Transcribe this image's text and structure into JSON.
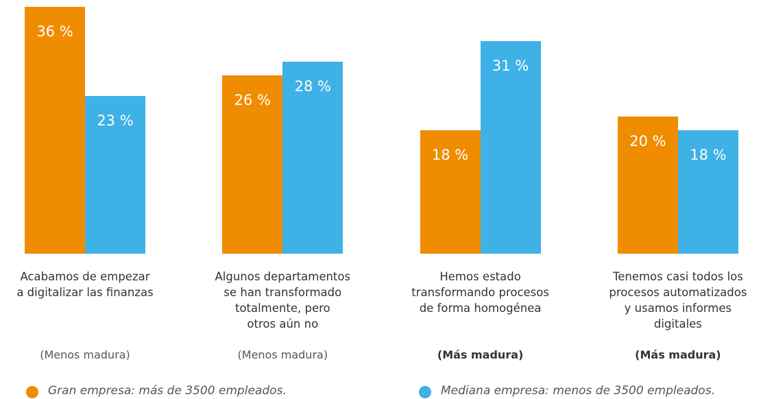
{
  "chart_data": {
    "type": "bar",
    "categories": [
      "Acabamos de empezar\na digitalizar las finanzas",
      "Algunos departamentos\nse han transformado\ntotalmente, pero\notros aún no",
      "Hemos estado\ntransformando procesos\nde forma homogénea",
      "Tenemos casi todos los\nprocesos automatizados\ny usamos informes\ndigitales"
    ],
    "maturity": [
      "(Menos madura)",
      "(Menos madura)",
      "(Más madura)",
      "(Más madura)"
    ],
    "maturity_bold": [
      false,
      false,
      true,
      true
    ],
    "series": [
      {
        "name": "Gran empresa: más de 3500 empleados.",
        "color": "#f08c00",
        "values": [
          36,
          26,
          18,
          20
        ],
        "value_labels": [
          "36 %",
          "26 %",
          "18 %",
          "20 %"
        ]
      },
      {
        "name": "Mediana empresa: menos de 3500 empleados.",
        "color": "#3eb1e6",
        "values": [
          23,
          28,
          31,
          18
        ],
        "value_labels": [
          "23 %",
          "28 %",
          "31 %",
          "18 %"
        ]
      }
    ],
    "ylim": [
      0,
      37
    ]
  }
}
